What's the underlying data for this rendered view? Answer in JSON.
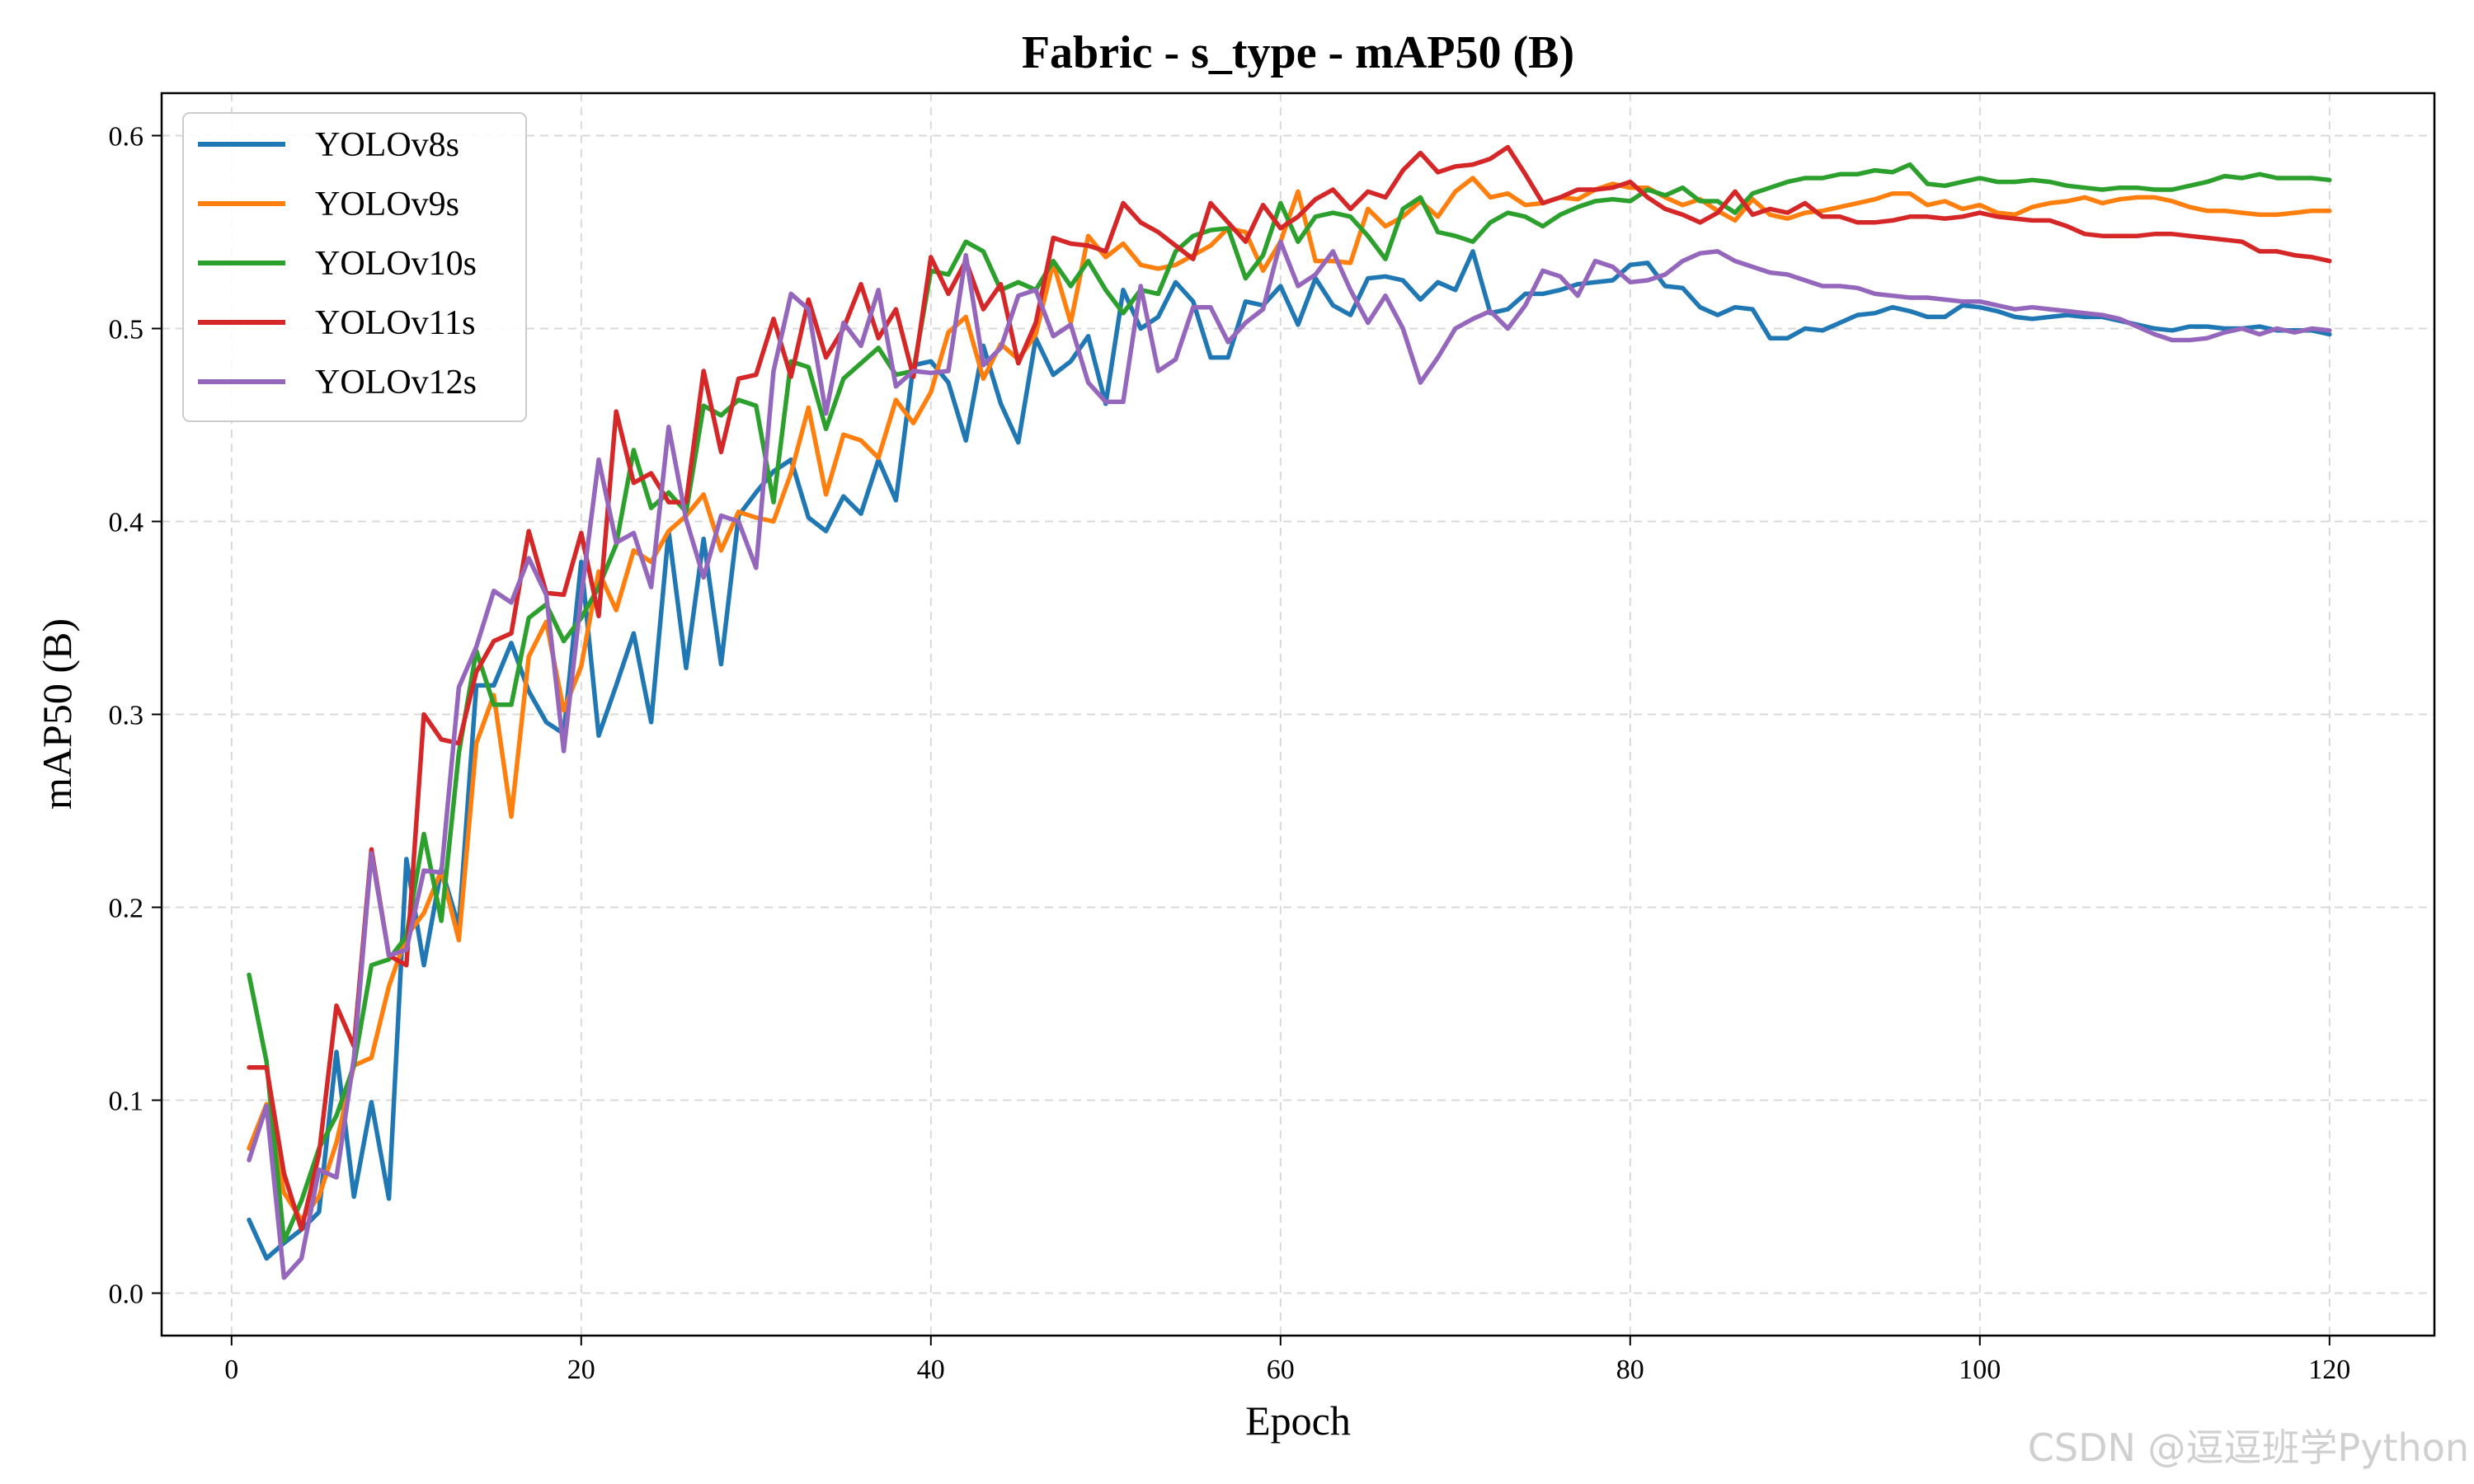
{
  "chart_data": {
    "type": "line",
    "title": "Fabric - s_type - mAP50 (B)",
    "xlabel": "Epoch",
    "ylabel": "mAP50 (B)",
    "xlim": [
      -4,
      126
    ],
    "ylim": [
      -0.022,
      0.622
    ],
    "xticks": [
      0,
      20,
      40,
      60,
      80,
      100,
      120
    ],
    "yticks": [
      0.0,
      0.1,
      0.2,
      0.3,
      0.4,
      0.5,
      0.6
    ],
    "grid": true,
    "legend_position": "top-left",
    "x_start": 1,
    "series": [
      {
        "name": "YOLOv8s",
        "color": "#1f77b4",
        "values": [
          0.038,
          0.018,
          0.026,
          0.033,
          0.042,
          0.125,
          0.05,
          0.099,
          0.049,
          0.225,
          0.17,
          0.22,
          0.19,
          0.315,
          0.315,
          0.337,
          0.312,
          0.296,
          0.29,
          0.379,
          0.289,
          0.315,
          0.342,
          0.296,
          0.395,
          0.324,
          0.391,
          0.326,
          0.403,
          0.415,
          0.426,
          0.432,
          0.402,
          0.395,
          0.413,
          0.404,
          0.432,
          0.411,
          0.481,
          0.483,
          0.472,
          0.442,
          0.491,
          0.461,
          0.441,
          0.495,
          0.476,
          0.483,
          0.496,
          0.461,
          0.52,
          0.5,
          0.506,
          0.524,
          0.514,
          0.485,
          0.485,
          0.514,
          0.512,
          0.522,
          0.502,
          0.526,
          0.512,
          0.507,
          0.526,
          0.527,
          0.525,
          0.515,
          0.524,
          0.52,
          0.54,
          0.508,
          0.51,
          0.518,
          0.518,
          0.52,
          0.523,
          0.524,
          0.525,
          0.533,
          0.534,
          0.522,
          0.521,
          0.511,
          0.507,
          0.511,
          0.51,
          0.495,
          0.495,
          0.5,
          0.499,
          0.503,
          0.507,
          0.508,
          0.511,
          0.509,
          0.506,
          0.506,
          0.512,
          0.511,
          0.509,
          0.506,
          0.505,
          0.506,
          0.507,
          0.506,
          0.506,
          0.504,
          0.502,
          0.5,
          0.499,
          0.501,
          0.501,
          0.5,
          0.5,
          0.501,
          0.499,
          0.499,
          0.499,
          0.497
        ]
      },
      {
        "name": "YOLOv9s",
        "color": "#ff7f0e",
        "values": [
          0.075,
          0.098,
          0.052,
          0.038,
          0.05,
          0.078,
          0.118,
          0.122,
          0.159,
          0.185,
          0.197,
          0.219,
          0.183,
          0.285,
          0.31,
          0.247,
          0.33,
          0.348,
          0.302,
          0.325,
          0.374,
          0.354,
          0.385,
          0.379,
          0.395,
          0.403,
          0.414,
          0.385,
          0.405,
          0.402,
          0.4,
          0.425,
          0.459,
          0.414,
          0.445,
          0.442,
          0.433,
          0.463,
          0.451,
          0.467,
          0.498,
          0.506,
          0.474,
          0.492,
          0.484,
          0.497,
          0.534,
          0.503,
          0.548,
          0.537,
          0.544,
          0.533,
          0.531,
          0.533,
          0.538,
          0.543,
          0.552,
          0.55,
          0.53,
          0.545,
          0.571,
          0.535,
          0.535,
          0.534,
          0.562,
          0.553,
          0.558,
          0.566,
          0.558,
          0.571,
          0.578,
          0.568,
          0.57,
          0.564,
          0.565,
          0.568,
          0.567,
          0.572,
          0.575,
          0.573,
          0.573,
          0.568,
          0.564,
          0.567,
          0.561,
          0.556,
          0.567,
          0.559,
          0.557,
          0.56,
          0.561,
          0.563,
          0.565,
          0.567,
          0.57,
          0.57,
          0.564,
          0.566,
          0.562,
          0.564,
          0.56,
          0.559,
          0.563,
          0.565,
          0.566,
          0.568,
          0.565,
          0.567,
          0.568,
          0.568,
          0.566,
          0.563,
          0.561,
          0.561,
          0.56,
          0.559,
          0.559,
          0.56,
          0.561,
          0.561
        ]
      },
      {
        "name": "YOLOv10s",
        "color": "#2ca02c",
        "values": [
          0.165,
          0.12,
          0.027,
          0.048,
          0.075,
          0.092,
          0.118,
          0.17,
          0.173,
          0.185,
          0.238,
          0.193,
          0.28,
          0.333,
          0.305,
          0.305,
          0.35,
          0.357,
          0.338,
          0.35,
          0.366,
          0.388,
          0.437,
          0.407,
          0.415,
          0.405,
          0.46,
          0.455,
          0.463,
          0.46,
          0.41,
          0.483,
          0.48,
          0.448,
          0.474,
          0.482,
          0.49,
          0.476,
          0.478,
          0.53,
          0.528,
          0.545,
          0.54,
          0.52,
          0.524,
          0.52,
          0.535,
          0.522,
          0.535,
          0.52,
          0.508,
          0.52,
          0.518,
          0.54,
          0.548,
          0.551,
          0.552,
          0.526,
          0.538,
          0.565,
          0.545,
          0.558,
          0.56,
          0.558,
          0.548,
          0.536,
          0.562,
          0.568,
          0.55,
          0.548,
          0.545,
          0.555,
          0.56,
          0.558,
          0.553,
          0.559,
          0.563,
          0.566,
          0.567,
          0.566,
          0.572,
          0.569,
          0.573,
          0.566,
          0.566,
          0.56,
          0.57,
          0.573,
          0.576,
          0.578,
          0.578,
          0.58,
          0.58,
          0.582,
          0.581,
          0.585,
          0.575,
          0.574,
          0.576,
          0.578,
          0.576,
          0.576,
          0.577,
          0.576,
          0.574,
          0.573,
          0.572,
          0.573,
          0.573,
          0.572,
          0.572,
          0.574,
          0.576,
          0.579,
          0.578,
          0.58,
          0.578,
          0.578,
          0.578,
          0.577
        ]
      },
      {
        "name": "YOLOv11s",
        "color": "#d62728",
        "values": [
          0.117,
          0.117,
          0.062,
          0.033,
          0.072,
          0.149,
          0.128,
          0.23,
          0.175,
          0.17,
          0.3,
          0.287,
          0.285,
          0.322,
          0.338,
          0.342,
          0.395,
          0.363,
          0.362,
          0.394,
          0.351,
          0.457,
          0.42,
          0.425,
          0.41,
          0.41,
          0.478,
          0.436,
          0.474,
          0.476,
          0.505,
          0.475,
          0.515,
          0.485,
          0.5,
          0.523,
          0.495,
          0.51,
          0.475,
          0.537,
          0.518,
          0.535,
          0.51,
          0.523,
          0.482,
          0.503,
          0.547,
          0.544,
          0.543,
          0.54,
          0.565,
          0.555,
          0.55,
          0.543,
          0.536,
          0.565,
          0.555,
          0.545,
          0.564,
          0.552,
          0.558,
          0.567,
          0.572,
          0.562,
          0.571,
          0.568,
          0.582,
          0.591,
          0.581,
          0.584,
          0.585,
          0.588,
          0.594,
          0.58,
          0.565,
          0.568,
          0.572,
          0.572,
          0.573,
          0.576,
          0.568,
          0.562,
          0.559,
          0.555,
          0.56,
          0.571,
          0.559,
          0.562,
          0.56,
          0.565,
          0.558,
          0.558,
          0.555,
          0.555,
          0.556,
          0.558,
          0.558,
          0.557,
          0.558,
          0.56,
          0.558,
          0.557,
          0.556,
          0.556,
          0.553,
          0.549,
          0.548,
          0.548,
          0.548,
          0.549,
          0.549,
          0.548,
          0.547,
          0.546,
          0.545,
          0.54,
          0.54,
          0.538,
          0.537,
          0.535
        ]
      },
      {
        "name": "YOLOv12s",
        "color": "#9467bd",
        "values": [
          0.069,
          0.097,
          0.008,
          0.018,
          0.064,
          0.06,
          0.122,
          0.228,
          0.175,
          0.178,
          0.219,
          0.218,
          0.314,
          0.335,
          0.364,
          0.358,
          0.381,
          0.362,
          0.281,
          0.361,
          0.432,
          0.389,
          0.394,
          0.366,
          0.449,
          0.401,
          0.371,
          0.403,
          0.4,
          0.376,
          0.478,
          0.518,
          0.51,
          0.456,
          0.503,
          0.491,
          0.52,
          0.47,
          0.478,
          0.477,
          0.478,
          0.538,
          0.481,
          0.49,
          0.517,
          0.52,
          0.496,
          0.502,
          0.472,
          0.462,
          0.462,
          0.522,
          0.478,
          0.484,
          0.511,
          0.511,
          0.493,
          0.503,
          0.51,
          0.545,
          0.522,
          0.528,
          0.54,
          0.52,
          0.503,
          0.517,
          0.5,
          0.472,
          0.485,
          0.5,
          0.505,
          0.509,
          0.5,
          0.512,
          0.53,
          0.527,
          0.517,
          0.535,
          0.532,
          0.524,
          0.525,
          0.528,
          0.535,
          0.539,
          0.54,
          0.535,
          0.532,
          0.529,
          0.528,
          0.525,
          0.522,
          0.522,
          0.521,
          0.518,
          0.517,
          0.516,
          0.516,
          0.515,
          0.514,
          0.514,
          0.512,
          0.51,
          0.511,
          0.51,
          0.509,
          0.508,
          0.507,
          0.505,
          0.501,
          0.497,
          0.494,
          0.494,
          0.495,
          0.498,
          0.5,
          0.497,
          0.5,
          0.498,
          0.5,
          0.499
        ]
      }
    ]
  },
  "watermark": "CSDN @逗逗班学Python"
}
